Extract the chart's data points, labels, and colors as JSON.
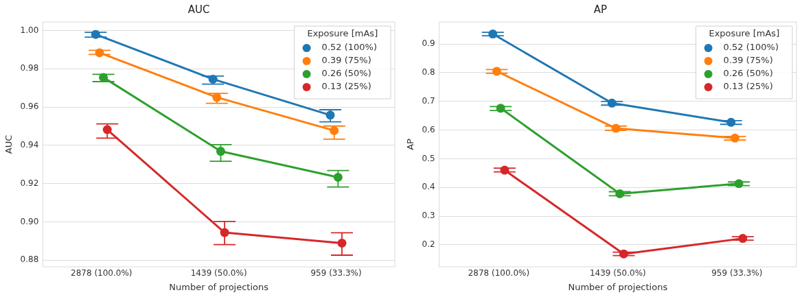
{
  "chart_data": [
    {
      "type": "line",
      "title": "AUC",
      "xlabel": "Number of projections",
      "ylabel": "AUC",
      "categories": [
        "2878 (100.0%)",
        "1439 (50.0%)",
        "959 (33.3%)"
      ],
      "ylim": [
        0.8765,
        1.0045
      ],
      "yticks": [
        {
          "value": 0.88,
          "label": "0.88"
        },
        {
          "value": 0.9,
          "label": "0.90"
        },
        {
          "value": 0.92,
          "label": "0.92"
        },
        {
          "value": 0.94,
          "label": "0.94"
        },
        {
          "value": 0.96,
          "label": "0.96"
        },
        {
          "value": 0.98,
          "label": "0.98"
        },
        {
          "value": 1.0,
          "label": "1.00"
        }
      ],
      "grid": "y",
      "legend": "top right",
      "legend_title": "Exposure [mAs]",
      "marker": "circle",
      "series": [
        {
          "name": "0.52 (100%)",
          "color": "#1f77b4",
          "values": [
            0.998,
            0.9746,
            0.9558
          ],
          "errors": [
            [
              0.9966,
              0.9991
            ],
            [
              0.972,
              0.9762
            ],
            [
              0.9523,
              0.9586
            ]
          ]
        },
        {
          "name": "0.39 (75%)",
          "color": "#ff7f0e",
          "values": [
            0.9884,
            0.9651,
            0.9477
          ],
          "errors": [
            [
              0.9875,
              0.9897
            ],
            [
              0.962,
              0.9672
            ],
            [
              0.9432,
              0.9501
            ]
          ]
        },
        {
          "name": "0.26 (50%)",
          "color": "#2ca02c",
          "values": [
            0.9755,
            0.9369,
            0.9233
          ],
          "errors": [
            [
              0.9733,
              0.9771
            ],
            [
              0.9317,
              0.9404
            ],
            [
              0.9182,
              0.9268
            ]
          ]
        },
        {
          "name": "0.13 (25%)",
          "color": "#d62728",
          "values": [
            0.9482,
            0.8944,
            0.8889
          ],
          "errors": [
            [
              0.9438,
              0.9512
            ],
            [
              0.8881,
              0.9002
            ],
            [
              0.8826,
              0.8943
            ]
          ]
        }
      ]
    },
    {
      "type": "line",
      "title": "AP",
      "xlabel": "Number of projections",
      "ylabel": "AP",
      "categories": [
        "2878 (100.0%)",
        "1439 (50.0%)",
        "959 (33.3%)"
      ],
      "ylim": [
        0.123,
        0.977
      ],
      "yticks": [
        0.2,
        0.3,
        0.4,
        0.5,
        0.6,
        0.7,
        0.8,
        0.9
      ],
      "grid": "y",
      "legend": "top right",
      "legend_title": "Exposure [mAs]",
      "marker": "circle",
      "series": [
        {
          "name": "0.52 (100%)",
          "color": "#1f77b4",
          "values": [
            0.935,
            0.694,
            0.627
          ],
          "errors": [
            [
              0.929,
              0.941
            ],
            [
              0.687,
              0.7
            ],
            [
              0.62,
              0.633
            ]
          ]
        },
        {
          "name": "0.39 (75%)",
          "color": "#ff7f0e",
          "values": [
            0.805,
            0.606,
            0.572
          ],
          "errors": [
            [
              0.798,
              0.811
            ],
            [
              0.599,
              0.614
            ],
            [
              0.565,
              0.578
            ]
          ]
        },
        {
          "name": "0.26 (50%)",
          "color": "#2ca02c",
          "values": [
            0.676,
            0.378,
            0.413
          ],
          "errors": [
            [
              0.668,
              0.682
            ],
            [
              0.371,
              0.385
            ],
            [
              0.406,
              0.419
            ]
          ]
        },
        {
          "name": "0.13 (25%)",
          "color": "#d62728",
          "values": [
            0.46,
            0.168,
            0.222
          ],
          "errors": [
            [
              0.454,
              0.467
            ],
            [
              0.162,
              0.174
            ],
            [
              0.216,
              0.228
            ]
          ]
        }
      ]
    }
  ]
}
